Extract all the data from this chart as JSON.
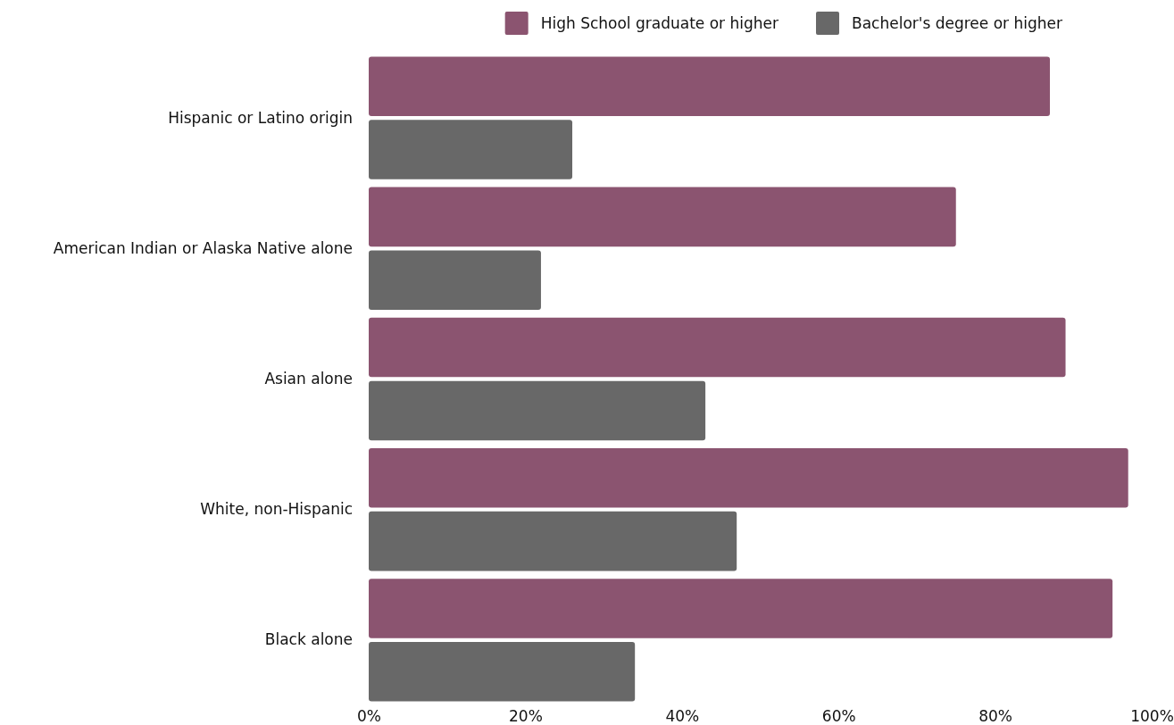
{
  "chart_data": {
    "type": "bar",
    "orientation": "horizontal",
    "categories": [
      "Hispanic or Latino origin",
      "American Indian or Alaska Native alone",
      "Asian alone",
      "White, non-Hispanic",
      "Black alone"
    ],
    "series": [
      {
        "name": "High School graduate or higher",
        "color": "#8b5470",
        "values": [
          87,
          75,
          89,
          97,
          95
        ]
      },
      {
        "name": "Bachelor's degree or higher",
        "color": "#686868",
        "values": [
          26,
          22,
          43,
          47,
          34
        ]
      }
    ],
    "xlim": [
      0,
      100
    ],
    "xticks": [
      {
        "value": 0,
        "label": "0%"
      },
      {
        "value": 20,
        "label": "20%"
      },
      {
        "value": 40,
        "label": "40%"
      },
      {
        "value": 60,
        "label": "60%"
      },
      {
        "value": 80,
        "label": "80%"
      },
      {
        "value": 100,
        "label": "100%"
      }
    ],
    "grid": false,
    "legend": "top right"
  }
}
